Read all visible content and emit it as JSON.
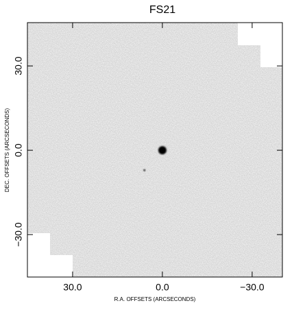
{
  "chart_data": {
    "type": "image",
    "title": "FS21",
    "xlabel": "R.A. OFFSETS (ARCSECONDS)",
    "ylabel": "DEC. OFFSETS (ARCSECONDS)",
    "xlim": [
      45.1,
      -40.1
    ],
    "ylim": [
      -45.1,
      45.4
    ],
    "xticks": [
      {
        "value": 30,
        "label": "30.0"
      },
      {
        "value": 0,
        "label": "0.0"
      },
      {
        "value": -30,
        "label": "−30.0"
      }
    ],
    "yticks": [
      {
        "value": -30,
        "label": "−30.0"
      },
      {
        "value": 0,
        "label": "0.0"
      },
      {
        "value": 30,
        "label": "30.0"
      }
    ],
    "sources": [
      {
        "x": 0,
        "y": 0,
        "size": 6,
        "color": "#000000"
      },
      {
        "x": 6.0,
        "y": -7.1,
        "size": 1.5,
        "color": "#1a1a1a"
      }
    ]
  }
}
